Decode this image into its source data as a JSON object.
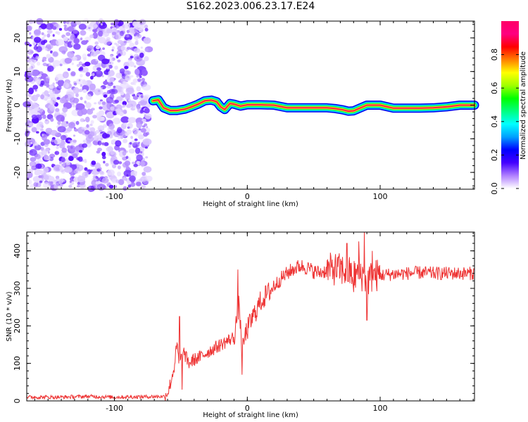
{
  "title": "S162.2023.006.23.17.E24",
  "chart_data": [
    {
      "type": "heatmap",
      "xlabel": "Height of straight line (km)",
      "ylabel": "Frequency (Hz)",
      "xlim": [
        -166,
        171
      ],
      "ylim": [
        -25,
        25
      ],
      "xticks": [
        -100,
        0,
        100
      ],
      "xtick_labels": [
        "-100",
        "0",
        "100"
      ],
      "yticks": [
        -20,
        -10,
        0,
        10,
        20
      ],
      "ytick_labels": [
        "-20",
        "-10",
        "0",
        "10",
        "20"
      ],
      "noise_region_x": [
        -166,
        -74
      ],
      "ridge": {
        "x": [
          -71,
          -67,
          -63,
          -58,
          -53,
          -47,
          -42,
          -37,
          -32,
          -27,
          -23,
          -20,
          -17,
          -13,
          -10,
          -5,
          0,
          10,
          20,
          30,
          40,
          50,
          60,
          66,
          72,
          76,
          80,
          84,
          90,
          96,
          100,
          110,
          120,
          130,
          140,
          150,
          160,
          171
        ],
        "y": [
          1.3,
          1.6,
          -0.8,
          -1.6,
          -1.6,
          -1.2,
          -0.5,
          0.3,
          1.3,
          1.5,
          1.0,
          -0.5,
          -1.3,
          0.5,
          0.3,
          -0.3,
          0.1,
          0.1,
          0.0,
          -0.8,
          -0.8,
          -0.8,
          -0.8,
          -1.0,
          -1.4,
          -1.8,
          -1.7,
          -1.0,
          0.0,
          0.0,
          0.0,
          -0.9,
          -0.9,
          -0.9,
          -0.8,
          -0.5,
          0.0,
          0.0
        ]
      },
      "colorbar": {
        "label": "Normalized spectral amplitude",
        "ticks": [
          0.0,
          0.2,
          0.4,
          0.6,
          0.8
        ],
        "tick_labels": [
          "0.0",
          "0.2",
          "0.4",
          "0.6",
          "0.8"
        ],
        "range": [
          0,
          1
        ],
        "colormap": [
          "#ffffff",
          "#b080ff",
          "#4400ff",
          "#0000ff",
          "#00a0ff",
          "#00ffff",
          "#00ff80",
          "#00ff00",
          "#a0ff00",
          "#ffff00",
          "#ff8000",
          "#ff0000",
          "#ff0080",
          "#ff0066"
        ]
      },
      "grid": false
    },
    {
      "type": "line",
      "xlabel": "Height of straight line (km)",
      "ylabel": "SNR (10 * v/v)",
      "xlim": [
        -166,
        171
      ],
      "ylim": [
        0,
        450
      ],
      "xticks": [
        -100,
        0,
        100
      ],
      "xtick_labels": [
        "-100",
        "0",
        "100"
      ],
      "yticks": [
        0,
        100,
        200,
        300,
        400
      ],
      "ytick_labels": [
        "0",
        "100",
        "200",
        "300",
        "400"
      ],
      "series": [
        {
          "color": "#ee3333",
          "x": [
            -166,
            -140,
            -120,
            -100,
            -80,
            -62,
            -59,
            -57,
            -55,
            -53,
            -51,
            -50,
            -48,
            -46,
            -44,
            -40,
            -35,
            -30,
            -25,
            -20,
            -15,
            -10,
            -8,
            -6,
            -4,
            -2,
            0,
            5,
            10,
            15,
            20,
            25,
            30,
            35,
            40,
            45,
            50,
            55,
            60,
            65,
            70,
            75,
            80,
            85,
            88,
            90,
            95,
            100,
            110,
            120,
            130,
            140,
            150,
            160,
            171
          ],
          "y": [
            10,
            10,
            12,
            10,
            11,
            12,
            30,
            60,
            90,
            150,
            90,
            110,
            130,
            115,
            100,
            110,
            118,
            130,
            140,
            150,
            160,
            170,
            220,
            260,
            120,
            170,
            190,
            230,
            265,
            285,
            305,
            325,
            340,
            352,
            360,
            355,
            345,
            342,
            348,
            352,
            350,
            345,
            335,
            340,
            330,
            320,
            335,
            335,
            338,
            340,
            342,
            340,
            340,
            340,
            340
          ],
          "spikes": [
            {
              "x": -51,
              "y": 225
            },
            {
              "x": -49,
              "y": 30
            },
            {
              "x": -7,
              "y": 350
            },
            {
              "x": -4,
              "y": 70
            },
            {
              "x": 75,
              "y": 420
            },
            {
              "x": 80,
              "y": 290
            },
            {
              "x": 84,
              "y": 425
            },
            {
              "x": 88,
              "y": 450
            },
            {
              "x": 90,
              "y": 215
            },
            {
              "x": 94,
              "y": 400
            }
          ]
        }
      ],
      "grid": false
    }
  ]
}
